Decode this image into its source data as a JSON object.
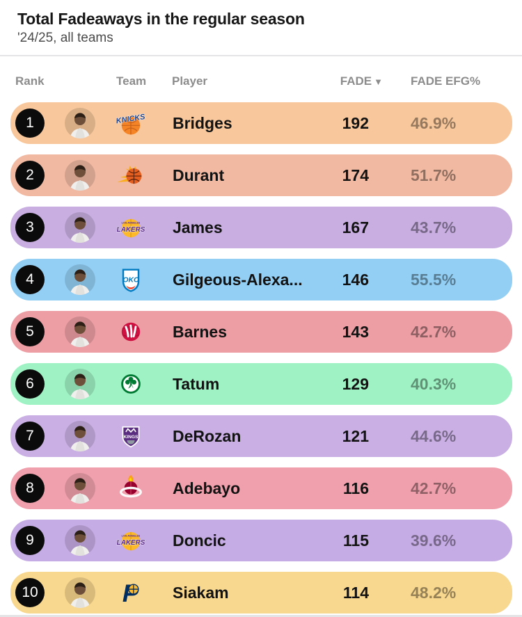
{
  "header": {
    "title": "Total Fadeaways in the regular season",
    "subtitle": "'24/25, all teams"
  },
  "table": {
    "columns": [
      {
        "label": "Rank"
      },
      {
        "label": "Team"
      },
      {
        "label": "Player"
      },
      {
        "label": "FADE",
        "sort_icon": "▼",
        "sorted": "desc"
      },
      {
        "label": "FADE EFG%"
      }
    ],
    "rows": [
      {
        "rank": "1",
        "team": "Knicks",
        "team_logo_icon": "knicks-logo-icon",
        "player": "Bridges",
        "fade": "192",
        "fade_efg": "46.9%",
        "color": "#F8C89C"
      },
      {
        "rank": "2",
        "team": "Suns",
        "team_logo_icon": "suns-logo-icon",
        "player": "Durant",
        "fade": "174",
        "fade_efg": "51.7%",
        "color": "#F1B9A2"
      },
      {
        "rank": "3",
        "team": "Lakers",
        "team_logo_icon": "lakers-logo-icon",
        "player": "James",
        "fade": "167",
        "fade_efg": "43.7%",
        "color": "#C8AEE1"
      },
      {
        "rank": "4",
        "team": "Thunder",
        "team_logo_icon": "okc-logo-icon",
        "player": "Gilgeous-Alexa...",
        "fade": "146",
        "fade_efg": "55.5%",
        "color": "#93CFF4"
      },
      {
        "rank": "5",
        "team": "Raptors",
        "team_logo_icon": "raptors-logo-icon",
        "player": "Barnes",
        "fade": "143",
        "fade_efg": "42.7%",
        "color": "#EC9EA4"
      },
      {
        "rank": "6",
        "team": "Celtics",
        "team_logo_icon": "celtics-logo-icon",
        "player": "Tatum",
        "fade": "129",
        "fade_efg": "40.3%",
        "color": "#9FF2C4"
      },
      {
        "rank": "7",
        "team": "Kings",
        "team_logo_icon": "kings-logo-icon",
        "player": "DeRozan",
        "fade": "121",
        "fade_efg": "44.6%",
        "color": "#C9AFE4"
      },
      {
        "rank": "8",
        "team": "Heat",
        "team_logo_icon": "heat-logo-icon",
        "player": "Adebayo",
        "fade": "116",
        "fade_efg": "42.7%",
        "color": "#F0A0AC"
      },
      {
        "rank": "9",
        "team": "Lakers",
        "team_logo_icon": "lakers-logo-icon",
        "player": "Doncic",
        "fade": "115",
        "fade_efg": "39.6%",
        "color": "#C6ACE4"
      },
      {
        "rank": "10",
        "team": "Pacers",
        "team_logo_icon": "pacers-logo-icon",
        "player": "Siakam",
        "fade": "114",
        "fade_efg": "48.2%",
        "color": "#F8D78E"
      }
    ]
  },
  "colors": {
    "page_bg": "#FFFFFF",
    "rank_badge_bg": "#0B0B0B",
    "rank_badge_text": "#FFFFFF",
    "title_text": "#161616",
    "subtitle_text": "#4B4B4B",
    "column_header_text": "#8C8C8C",
    "divider": "#E4E4E7",
    "primary_text": "#121212",
    "efg_text": "rgba(0,0,0,0.40)"
  },
  "chart_data": {
    "type": "table",
    "title": "Total Fadeaways in the regular season",
    "subtitle": "'24/25, all teams",
    "columns": [
      "Rank",
      "Team",
      "Player",
      "FADE",
      "FADE EFG%"
    ],
    "sorted_by": "FADE",
    "sort_direction": "desc",
    "rows": [
      [
        1,
        "Knicks",
        "Bridges",
        192,
        "46.9%"
      ],
      [
        2,
        "Suns",
        "Durant",
        174,
        "51.7%"
      ],
      [
        3,
        "Lakers",
        "James",
        167,
        "43.7%"
      ],
      [
        4,
        "Thunder",
        "Gilgeous-Alexa...",
        146,
        "55.5%"
      ],
      [
        5,
        "Raptors",
        "Barnes",
        143,
        "42.7%"
      ],
      [
        6,
        "Celtics",
        "Tatum",
        129,
        "40.3%"
      ],
      [
        7,
        "Kings",
        "DeRozan",
        121,
        "44.6%"
      ],
      [
        8,
        "Heat",
        "Adebayo",
        116,
        "42.7%"
      ],
      [
        9,
        "Lakers",
        "Doncic",
        115,
        "39.6%"
      ],
      [
        10,
        "Pacers",
        "Siakam",
        114,
        "48.2%"
      ]
    ]
  }
}
